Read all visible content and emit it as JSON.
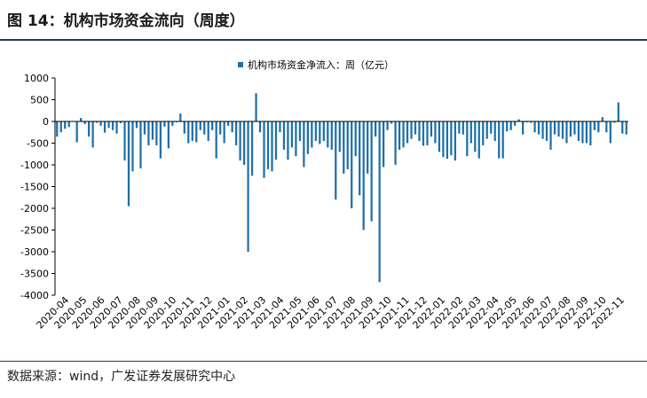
{
  "header": {
    "title": "图 14：机构市场资金流向（周度）"
  },
  "footer": {
    "source": "数据来源：wind，广发证券发展研究中心"
  },
  "colors": {
    "bar": "#1f6fa8",
    "accent": "#1f3864"
  },
  "chart_data": {
    "type": "bar",
    "title": "",
    "xlabel": "",
    "ylabel": "",
    "ylim": [
      -4000,
      1000
    ],
    "yticks": [
      -4000,
      -3500,
      -3000,
      -2500,
      -2000,
      -1500,
      -1000,
      -500,
      0,
      500,
      1000
    ],
    "legend": {
      "position": "top-center",
      "label": "机构市场资金净流入：周（亿元）"
    },
    "series": [
      {
        "name": "机构市场资金净流入：周（亿元）",
        "values": [
          -350,
          -250,
          -170,
          -130,
          0,
          -480,
          80,
          -60,
          -350,
          -600,
          -30,
          -100,
          -260,
          -150,
          -200,
          -280,
          -40,
          -900,
          -1950,
          -1150,
          -150,
          -1080,
          -300,
          -550,
          -420,
          -550,
          -850,
          -120,
          -620,
          -100,
          -20,
          180,
          -280,
          -500,
          -450,
          -480,
          -200,
          -300,
          -450,
          -200,
          -850,
          -300,
          -500,
          -100,
          -250,
          -550,
          -900,
          -1000,
          -3000,
          -1250,
          650,
          -250,
          -1300,
          -1100,
          -1150,
          -880,
          -250,
          -650,
          -880,
          -600,
          -800,
          -450,
          -1050,
          -750,
          -600,
          -450,
          -520,
          -450,
          -600,
          -650,
          -1800,
          -700,
          -1200,
          -1100,
          -2000,
          -800,
          -1700,
          -2500,
          -1200,
          -2300,
          -350,
          -3700,
          -1050,
          -200,
          -50,
          -1000,
          -650,
          -600,
          -500,
          -400,
          -300,
          -450,
          -560,
          -550,
          -350,
          -500,
          -700,
          -820,
          -860,
          -780,
          -900,
          -280,
          -300,
          -800,
          -500,
          -700,
          -850,
          -550,
          -400,
          -280,
          -450,
          -850,
          -850,
          -230,
          -200,
          -100,
          50,
          -300,
          -20,
          -30,
          -250,
          -300,
          -400,
          -450,
          -650,
          -300,
          -350,
          -400,
          -500,
          -350,
          -300,
          -450,
          -500,
          -500,
          -550,
          -200,
          -250,
          100,
          -250,
          -500,
          -30,
          440,
          -280,
          -300
        ]
      }
    ],
    "xtick_labels": [
      "2020-04",
      "2020-05",
      "2020-06",
      "2020-07",
      "2020-08",
      "2020-09",
      "2020-10",
      "2020-11",
      "2020-12",
      "2021-01",
      "2021-02",
      "2021-03",
      "2021-04",
      "2021-05",
      "2021-06",
      "2021-07",
      "2021-08",
      "2021-09",
      "2021-10",
      "2021-11",
      "2021-12",
      "2022-01",
      "2022-02",
      "2022-03",
      "2022-04",
      "2022-05",
      "2022-06",
      "2022-07",
      "2022-08",
      "2022-09",
      "2022-10",
      "2022-11"
    ]
  }
}
